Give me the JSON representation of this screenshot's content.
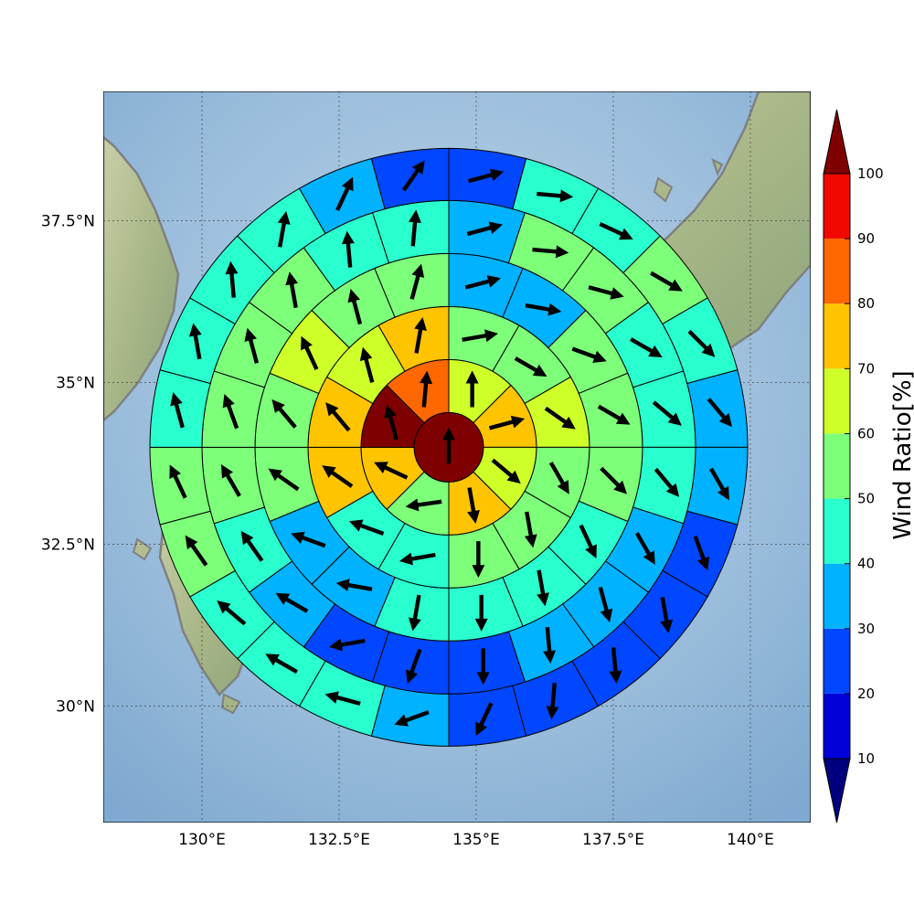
{
  "map": {
    "projection": "polar wind-sector diagram over southwestern Japan",
    "lon_range": [
      128.2,
      141.1
    ],
    "lat_range": [
      28.2,
      39.5
    ],
    "center": {
      "lon": 134.5,
      "lat": 34.0
    },
    "x_ticks": [
      {
        "value": 130,
        "label": "130°E"
      },
      {
        "value": 132.5,
        "label": "132.5°E"
      },
      {
        "value": 135,
        "label": "135°E"
      },
      {
        "value": 137.5,
        "label": "137.5°E"
      },
      {
        "value": 140,
        "label": "140°E"
      }
    ],
    "y_ticks": [
      {
        "value": 30,
        "label": "30°N"
      },
      {
        "value": 32.5,
        "label": "32.5°N"
      },
      {
        "value": 35,
        "label": "35°N"
      },
      {
        "value": 37.5,
        "label": "37.5°N"
      }
    ],
    "gridlines": true,
    "basemap": "shaded relief with grey coastlines"
  },
  "colorbar": {
    "title": "Wind Ratio[%]",
    "ticks": [
      "10",
      "20",
      "30",
      "40",
      "50",
      "60",
      "70",
      "80",
      "90",
      "100"
    ],
    "bins": [
      {
        "color": "#00007f"
      },
      {
        "color": "#0000d9"
      },
      {
        "color": "#0047ff"
      },
      {
        "color": "#00b2ff"
      },
      {
        "color": "#29ffce"
      },
      {
        "color": "#7dff7a"
      },
      {
        "color": "#ceff29"
      },
      {
        "color": "#ffc400"
      },
      {
        "color": "#ff6800"
      },
      {
        "color": "#f10800"
      },
      {
        "color": "#7f0000"
      }
    ],
    "extend": "both"
  },
  "chart_data": {
    "type": "heatmap",
    "title": "",
    "xlabel": "",
    "ylabel": "",
    "value_label": "Wind Ratio[%]",
    "rings": [
      {
        "ring": 0,
        "sectors": 1,
        "values": [
          100
        ],
        "arrow_dir_deg": [
          0
        ]
      },
      {
        "ring": 1,
        "sectors": 8,
        "values": [
          65,
          75,
          65,
          75,
          55,
          75,
          100,
          85
        ],
        "arrow_dir_deg": [
          0,
          75,
          130,
          170,
          262,
          295,
          345,
          5
        ]
      },
      {
        "ring": 2,
        "sectors": 12,
        "values": [
          55,
          55,
          65,
          55,
          55,
          55,
          45,
          45,
          75,
          75,
          65,
          75
        ],
        "arrow_dir_deg": [
          80,
          120,
          125,
          150,
          170,
          180,
          260,
          290,
          305,
          320,
          345,
          10
        ]
      },
      {
        "ring": 3,
        "sectors": 16,
        "values": [
          35,
          35,
          55,
          55,
          55,
          45,
          45,
          45,
          45,
          35,
          35,
          55,
          55,
          65,
          55,
          55
        ],
        "arrow_dir_deg": [
          75,
          100,
          110,
          120,
          135,
          155,
          170,
          180,
          190,
          280,
          290,
          305,
          320,
          335,
          345,
          15
        ]
      },
      {
        "ring": 4,
        "sectors": 20,
        "values": [
          35,
          55,
          55,
          45,
          45,
          45,
          35,
          35,
          35,
          25,
          25,
          25,
          35,
          45,
          55,
          55,
          55,
          55,
          45,
          45
        ],
        "arrow_dir_deg": [
          75,
          95,
          105,
          120,
          130,
          140,
          150,
          165,
          175,
          180,
          200,
          260,
          300,
          325,
          330,
          340,
          345,
          350,
          355,
          5
        ]
      },
      {
        "ring": 5,
        "sectors": 24,
        "values": [
          25,
          45,
          45,
          55,
          45,
          35,
          35,
          25,
          25,
          25,
          25,
          25,
          35,
          45,
          45,
          45,
          55,
          55,
          45,
          45,
          45,
          45,
          35,
          25
        ],
        "arrow_dir_deg": [
          75,
          95,
          115,
          120,
          135,
          140,
          150,
          160,
          170,
          175,
          185,
          205,
          250,
          285,
          300,
          310,
          325,
          335,
          345,
          350,
          355,
          10,
          25,
          35
        ]
      }
    ],
    "ring_radii_km": [
      50,
      150,
      250,
      350,
      450,
      550
    ]
  }
}
